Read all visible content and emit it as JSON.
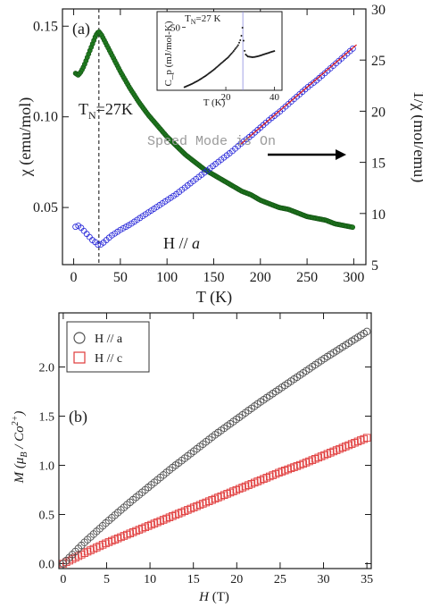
{
  "watermark": "Speed Mode is On",
  "colors": {
    "green": "#1f7a1f",
    "blue": "#2424d8",
    "red": "#e01818",
    "dark": "#505050",
    "redsq": "#e03a3a",
    "axis": "#1a1a1a",
    "dash": "#333333"
  },
  "panel_a": {
    "label": "(a)",
    "tn_label_main": "T",
    "tn_sub": "N",
    "tn_value": "=27K",
    "field_label": "H // ",
    "field_axis": "a",
    "xlabel": "T (K)",
    "ylabel_left": "χ (emu/mol)",
    "ylabel_right": "1/χ (mol/emu)",
    "inset": {
      "ylabel": "C_p (mJ/mol-K)",
      "xlabel": "T (K)",
      "tn_text_pre": "T",
      "tn_sub": "N",
      "tn_text_post": "=27 K",
      "x_ticks": [
        "20",
        "40"
      ],
      "y_ticks": [
        "50"
      ]
    }
  },
  "panel_b": {
    "label": "(b)",
    "xlabel": "H (T)",
    "ylabel": "M (μB / Co2+)",
    "legend": [
      {
        "name": "H // a",
        "marker": "circle"
      },
      {
        "name": "H // c",
        "marker": "square"
      }
    ]
  },
  "chart_data": [
    {
      "type": "scatter",
      "title": "(a)",
      "xlabel": "T (K)",
      "ylabel": "χ (emu/mol)",
      "y2label": "1/χ (mol/emu)",
      "xlim": [
        -12,
        313
      ],
      "ylim": [
        0.0185,
        0.1595
      ],
      "y2lim": [
        5,
        30
      ],
      "x_ticks": [
        0,
        50,
        100,
        150,
        200,
        250,
        300
      ],
      "y_ticks": [
        0.05,
        0.1,
        0.15
      ],
      "y2_ticks": [
        5,
        10,
        15,
        20,
        25,
        30
      ],
      "annotations": [
        "T_N=27K",
        "H // a"
      ],
      "series": [
        {
          "axis": "left",
          "values": [
            [
              2,
              0.124
            ],
            [
              5,
              0.123
            ],
            [
              8,
              0.125
            ],
            [
              11,
              0.128
            ],
            [
              14,
              0.132
            ],
            [
              17,
              0.136
            ],
            [
              20,
              0.14
            ],
            [
              23,
              0.144
            ],
            [
              25,
              0.146
            ],
            [
              27,
              0.147
            ],
            [
              30,
              0.145
            ],
            [
              35,
              0.14
            ],
            [
              40,
              0.135
            ],
            [
              50,
              0.125
            ],
            [
              60,
              0.116
            ],
            [
              70,
              0.108
            ],
            [
              80,
              0.101
            ],
            [
              90,
              0.095
            ],
            [
              100,
              0.089
            ],
            [
              110,
              0.084
            ],
            [
              120,
              0.079
            ],
            [
              130,
              0.075
            ],
            [
              140,
              0.071
            ],
            [
              150,
              0.068
            ],
            [
              160,
              0.065
            ],
            [
              170,
              0.062
            ],
            [
              180,
              0.059
            ],
            [
              190,
              0.057
            ],
            [
              200,
              0.054
            ],
            [
              210,
              0.052
            ],
            [
              220,
              0.05
            ],
            [
              230,
              0.049
            ],
            [
              240,
              0.047
            ],
            [
              250,
              0.045
            ],
            [
              260,
              0.044
            ],
            [
              270,
              0.043
            ],
            [
              280,
              0.041
            ],
            [
              290,
              0.04
            ],
            [
              300,
              0.039
            ]
          ]
        },
        {
          "axis": "right",
          "values": [
            [
              2,
              8.7
            ],
            [
              5,
              8.8
            ],
            [
              8,
              8.6
            ],
            [
              11,
              8.3
            ],
            [
              14,
              8.0
            ],
            [
              17,
              7.7
            ],
            [
              20,
              7.4
            ],
            [
              23,
              7.2
            ],
            [
              25,
              7.0
            ],
            [
              27,
              6.9
            ],
            [
              30,
              7.0
            ],
            [
              35,
              7.4
            ],
            [
              40,
              7.8
            ],
            [
              50,
              8.4
            ],
            [
              60,
              8.9
            ],
            [
              70,
              9.5
            ],
            [
              80,
              10.1
            ],
            [
              90,
              10.7
            ],
            [
              100,
              11.3
            ],
            [
              110,
              11.9
            ],
            [
              120,
              12.6
            ],
            [
              130,
              13.3
            ],
            [
              140,
              14.0
            ],
            [
              150,
              14.7
            ],
            [
              160,
              15.4
            ],
            [
              170,
              16.1
            ],
            [
              180,
              16.9
            ],
            [
              190,
              17.6
            ],
            [
              200,
              18.4
            ],
            [
              210,
              19.2
            ],
            [
              220,
              19.9
            ],
            [
              230,
              20.7
            ],
            [
              240,
              21.5
            ],
            [
              250,
              22.3
            ],
            [
              260,
              23.0
            ],
            [
              270,
              23.8
            ],
            [
              280,
              24.6
            ],
            [
              290,
              25.4
            ],
            [
              300,
              26.2
            ]
          ]
        },
        {
          "axis": "right",
          "values": [
            [
              178,
              16.7
            ],
            [
              303,
              26.5
            ]
          ]
        }
      ]
    },
    {
      "type": "line",
      "title": "inset",
      "xlabel": "T (K)",
      "ylabel": "C_p (mJ/mol-K)",
      "xlim": [
        2,
        42
      ],
      "ylim": [
        10,
        60
      ],
      "x_ticks": [
        20,
        40
      ],
      "y_ticks": [
        50
      ],
      "annotations": [
        "T_N=27 K"
      ],
      "series": [
        {
          "values": [
            [
              3,
              12
            ],
            [
              6,
              14
            ],
            [
              9,
              16.5
            ],
            [
              12,
              19.5
            ],
            [
              15,
              23
            ],
            [
              18,
              27
            ],
            [
              21,
              31
            ],
            [
              23,
              34.5
            ],
            [
              25,
              38.5
            ],
            [
              26,
              42
            ],
            [
              26.6,
              46
            ],
            [
              27,
              52
            ],
            [
              27.4,
              38
            ],
            [
              28,
              33
            ],
            [
              29,
              31.5
            ],
            [
              31,
              31
            ],
            [
              33,
              31.5
            ],
            [
              35,
              32.5
            ],
            [
              37,
              33.5
            ],
            [
              39,
              34.5
            ],
            [
              40,
              35
            ]
          ]
        }
      ]
    },
    {
      "type": "scatter",
      "title": "(b)",
      "xlabel": "H (T)",
      "ylabel": "M (μB / Co2+)",
      "xlim": [
        -0.5,
        35.5
      ],
      "ylim": [
        -0.05,
        2.55
      ],
      "x_ticks": [
        0,
        5,
        10,
        15,
        20,
        25,
        30,
        35
      ],
      "y_ticks": [
        0.0,
        0.5,
        1.0,
        1.5,
        2.0
      ],
      "legend": [
        "H // a",
        "H // c"
      ],
      "series": [
        {
          "name": "H // a",
          "values": [
            [
              0,
              0
            ],
            [
              2.5,
              0.22
            ],
            [
              5,
              0.42
            ],
            [
              7.5,
              0.61
            ],
            [
              10,
              0.79
            ],
            [
              12.5,
              0.97
            ],
            [
              15,
              1.14
            ],
            [
              17.5,
              1.31
            ],
            [
              20,
              1.47
            ],
            [
              22.5,
              1.63
            ],
            [
              25,
              1.78
            ],
            [
              27.5,
              1.93
            ],
            [
              30,
              2.08
            ],
            [
              32.5,
              2.22
            ],
            [
              35,
              2.36
            ]
          ]
        },
        {
          "name": "H // c",
          "values": [
            [
              0,
              0
            ],
            [
              2.5,
              0.11
            ],
            [
              5,
              0.21
            ],
            [
              7.5,
              0.3
            ],
            [
              10,
              0.39
            ],
            [
              12.5,
              0.48
            ],
            [
              15,
              0.57
            ],
            [
              17.5,
              0.66
            ],
            [
              20,
              0.75
            ],
            [
              22.5,
              0.84
            ],
            [
              25,
              0.93
            ],
            [
              27.5,
              1.01
            ],
            [
              30,
              1.1
            ],
            [
              32.5,
              1.19
            ],
            [
              35,
              1.28
            ]
          ]
        }
      ]
    }
  ]
}
